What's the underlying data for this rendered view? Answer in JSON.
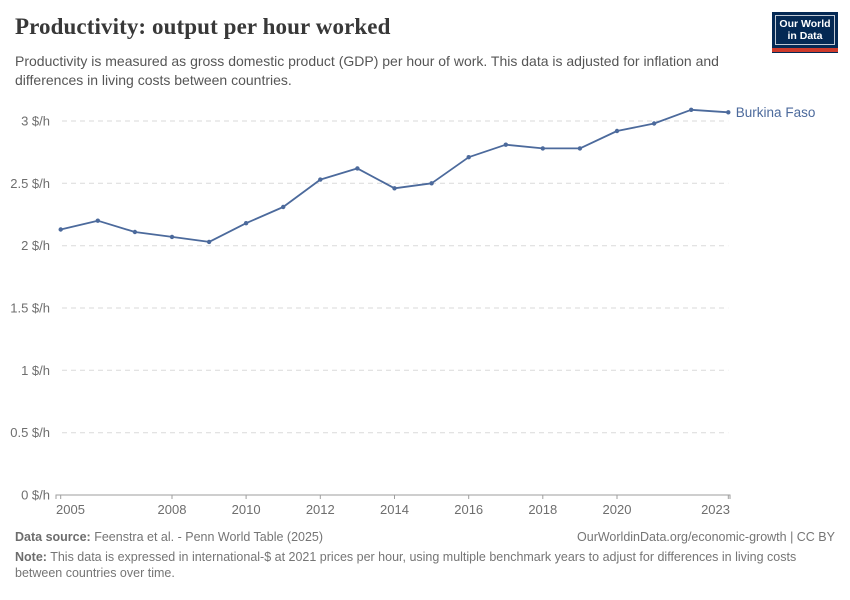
{
  "header": {
    "title": "Productivity: output per hour worked",
    "subtitle": "Productivity is measured as gross domestic product (GDP) per hour of work. This data is adjusted for inflation and differences in living costs between countries.",
    "logo": {
      "line1": "Our World",
      "line2": "in Data"
    }
  },
  "chart_data": {
    "type": "line",
    "title": "Productivity: output per hour worked",
    "xlabel": "",
    "ylabel": "",
    "xlim": [
      2005,
      2023
    ],
    "ylim": [
      0,
      3.2
    ],
    "grid": "horizontal dashed",
    "legend_position": "end-of-line label",
    "x_ticks": [
      2005,
      2008,
      2010,
      2012,
      2014,
      2016,
      2018,
      2020,
      2023
    ],
    "y_ticks": [
      {
        "value": 0,
        "label": "0 $/h"
      },
      {
        "value": 0.5,
        "label": "0.5 $/h"
      },
      {
        "value": 1,
        "label": "1 $/h"
      },
      {
        "value": 1.5,
        "label": "1.5 $/h"
      },
      {
        "value": 2,
        "label": "2 $/h"
      },
      {
        "value": 2.5,
        "label": "2.5 $/h"
      },
      {
        "value": 3,
        "label": "3 $/h"
      }
    ],
    "series": [
      {
        "name": "Burkina Faso",
        "color": "#4C6A9C",
        "x": [
          2005,
          2006,
          2007,
          2008,
          2009,
          2010,
          2011,
          2012,
          2013,
          2014,
          2015,
          2016,
          2017,
          2018,
          2019,
          2020,
          2021,
          2022,
          2023
        ],
        "values": [
          2.13,
          2.2,
          2.11,
          2.07,
          2.03,
          2.18,
          2.31,
          2.53,
          2.62,
          2.46,
          2.5,
          2.71,
          2.81,
          2.78,
          2.78,
          2.92,
          2.98,
          3.09,
          3.07
        ]
      }
    ]
  },
  "footer": {
    "source_label": "Data source:",
    "source_text": "Feenstra et al. - Penn World Table (2025)",
    "link_text": "OurWorldinData.org/economic-growth | CC BY",
    "note_label": "Note:",
    "note_text": "This data is expressed in international-$ at 2021 prices per hour, using multiple benchmark years to adjust for differences in living costs between countries over time."
  },
  "colors": {
    "accent_line": "#4C6A9C",
    "logo_navy": "#042954",
    "logo_red": "#CE3A2B",
    "gridline": "#dadada",
    "axis": "#9e9e9e",
    "title_text": "#383838",
    "subtitle_text": "#565656",
    "footer_text": "#757575"
  }
}
